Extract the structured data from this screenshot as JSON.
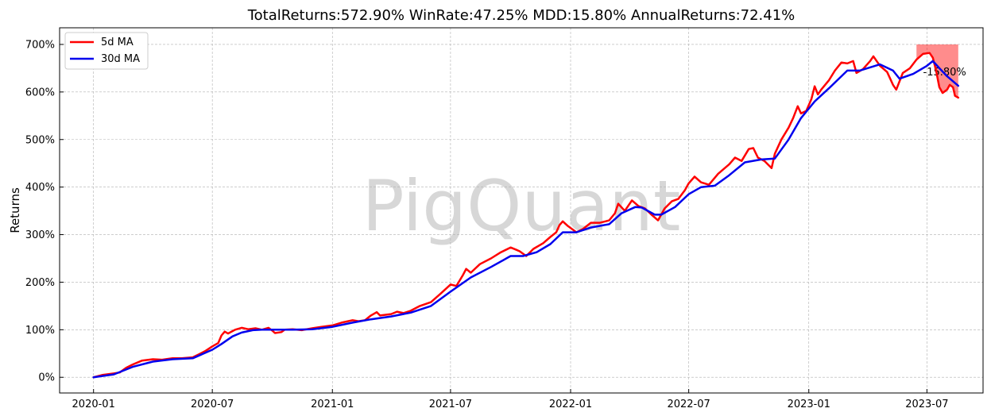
{
  "chart_data": {
    "type": "line",
    "title": "TotalReturns:572.90%  WinRate:47.25%  MDD:15.80%  AnnualReturns:72.41%",
    "xlabel": "",
    "ylabel": "Returns",
    "watermark": "PigQuant",
    "grid": true,
    "legend_position": "top-left",
    "xlim": [
      "2019-11-10",
      "2023-09-25"
    ],
    "ylim": [
      -33,
      735
    ],
    "x_ticks": [
      "2020-01",
      "2020-07",
      "2021-01",
      "2021-07",
      "2022-01",
      "2022-07",
      "2023-01",
      "2023-07"
    ],
    "y_ticks": [
      {
        "value": 0,
        "label": "0%"
      },
      {
        "value": 100,
        "label": "100%"
      },
      {
        "value": 200,
        "label": "200%"
      },
      {
        "value": 300,
        "label": "300%"
      },
      {
        "value": 400,
        "label": "400%"
      },
      {
        "value": 500,
        "label": "500%"
      },
      {
        "value": 600,
        "label": "600%"
      },
      {
        "value": 700,
        "label": "700%"
      }
    ],
    "series": [
      {
        "name": "5d MA",
        "color": "#ff0000",
        "points": [
          [
            "2020-01-01",
            0
          ],
          [
            "2020-01-15",
            5
          ],
          [
            "2020-02-01",
            8
          ],
          [
            "2020-02-10",
            10
          ],
          [
            "2020-02-20",
            20
          ],
          [
            "2020-03-01",
            27
          ],
          [
            "2020-03-15",
            35
          ],
          [
            "2020-04-01",
            38
          ],
          [
            "2020-04-15",
            37
          ],
          [
            "2020-05-01",
            40
          ],
          [
            "2020-05-15",
            40
          ],
          [
            "2020-06-01",
            42
          ],
          [
            "2020-06-10",
            48
          ],
          [
            "2020-06-20",
            55
          ],
          [
            "2020-07-01",
            65
          ],
          [
            "2020-07-10",
            72
          ],
          [
            "2020-07-15",
            88
          ],
          [
            "2020-07-20",
            96
          ],
          [
            "2020-07-25",
            92
          ],
          [
            "2020-08-05",
            100
          ],
          [
            "2020-08-15",
            104
          ],
          [
            "2020-08-25",
            101
          ],
          [
            "2020-09-05",
            103
          ],
          [
            "2020-09-15",
            100
          ],
          [
            "2020-09-25",
            104
          ],
          [
            "2020-10-01",
            98
          ],
          [
            "2020-10-05",
            93
          ],
          [
            "2020-10-15",
            95
          ],
          [
            "2020-10-20",
            100
          ],
          [
            "2020-11-01",
            101
          ],
          [
            "2020-11-15",
            99
          ],
          [
            "2020-12-01",
            103
          ],
          [
            "2020-12-15",
            106
          ],
          [
            "2021-01-01",
            109
          ],
          [
            "2021-01-15",
            115
          ],
          [
            "2021-02-01",
            120
          ],
          [
            "2021-02-10",
            118
          ],
          [
            "2021-02-20",
            120
          ],
          [
            "2021-03-01",
            130
          ],
          [
            "2021-03-10",
            137
          ],
          [
            "2021-03-15",
            130
          ],
          [
            "2021-04-01",
            133
          ],
          [
            "2021-04-10",
            138
          ],
          [
            "2021-04-20",
            135
          ],
          [
            "2021-05-01",
            140
          ],
          [
            "2021-05-15",
            150
          ],
          [
            "2021-06-01",
            158
          ],
          [
            "2021-06-15",
            175
          ],
          [
            "2021-07-01",
            195
          ],
          [
            "2021-07-10",
            192
          ],
          [
            "2021-07-20",
            215
          ],
          [
            "2021-07-25",
            228
          ],
          [
            "2021-08-01",
            220
          ],
          [
            "2021-08-15",
            238
          ],
          [
            "2021-09-01",
            250
          ],
          [
            "2021-09-15",
            262
          ],
          [
            "2021-10-01",
            273
          ],
          [
            "2021-10-10",
            268
          ],
          [
            "2021-10-15",
            265
          ],
          [
            "2021-10-25",
            255
          ],
          [
            "2021-11-05",
            270
          ],
          [
            "2021-11-20",
            282
          ],
          [
            "2021-12-01",
            295
          ],
          [
            "2021-12-10",
            305
          ],
          [
            "2021-12-15",
            320
          ],
          [
            "2021-12-20",
            328
          ],
          [
            "2021-12-28",
            318
          ],
          [
            "2022-01-10",
            305
          ],
          [
            "2022-01-20",
            312
          ],
          [
            "2022-02-01",
            325
          ],
          [
            "2022-02-15",
            325
          ],
          [
            "2022-03-01",
            330
          ],
          [
            "2022-03-10",
            345
          ],
          [
            "2022-03-15",
            365
          ],
          [
            "2022-03-25",
            350
          ],
          [
            "2022-04-05",
            372
          ],
          [
            "2022-04-15",
            360
          ],
          [
            "2022-04-25",
            355
          ],
          [
            "2022-05-05",
            342
          ],
          [
            "2022-05-15",
            330
          ],
          [
            "2022-05-25",
            355
          ],
          [
            "2022-06-05",
            370
          ],
          [
            "2022-06-15",
            375
          ],
          [
            "2022-06-25",
            393
          ],
          [
            "2022-07-01",
            408
          ],
          [
            "2022-07-10",
            422
          ],
          [
            "2022-07-20",
            410
          ],
          [
            "2022-08-01",
            405
          ],
          [
            "2022-08-15",
            428
          ],
          [
            "2022-09-01",
            448
          ],
          [
            "2022-09-10",
            462
          ],
          [
            "2022-09-20",
            455
          ],
          [
            "2022-10-01",
            480
          ],
          [
            "2022-10-08",
            482
          ],
          [
            "2022-10-15",
            462
          ],
          [
            "2022-10-25",
            455
          ],
          [
            "2022-11-05",
            440
          ],
          [
            "2022-11-10",
            470
          ],
          [
            "2022-11-20",
            500
          ],
          [
            "2022-12-01",
            525
          ],
          [
            "2022-12-08",
            545
          ],
          [
            "2022-12-15",
            570
          ],
          [
            "2022-12-20",
            555
          ],
          [
            "2022-12-28",
            560
          ],
          [
            "2023-01-05",
            585
          ],
          [
            "2023-01-10",
            612
          ],
          [
            "2023-01-15",
            595
          ],
          [
            "2023-01-20",
            605
          ],
          [
            "2023-02-01",
            625
          ],
          [
            "2023-02-10",
            645
          ],
          [
            "2023-02-20",
            662
          ],
          [
            "2023-03-01",
            660
          ],
          [
            "2023-03-10",
            665
          ],
          [
            "2023-03-15",
            640
          ],
          [
            "2023-03-25",
            648
          ],
          [
            "2023-04-05",
            665
          ],
          [
            "2023-04-10",
            675
          ],
          [
            "2023-04-20",
            655
          ],
          [
            "2023-05-01",
            642
          ],
          [
            "2023-05-10",
            615
          ],
          [
            "2023-05-15",
            605
          ],
          [
            "2023-05-25",
            640
          ],
          [
            "2023-06-05",
            650
          ],
          [
            "2023-06-15",
            668
          ],
          [
            "2023-06-25",
            680
          ],
          [
            "2023-07-05",
            682
          ],
          [
            "2023-07-10",
            672
          ],
          [
            "2023-07-15",
            645
          ],
          [
            "2023-07-20",
            610
          ],
          [
            "2023-07-25",
            598
          ],
          [
            "2023-08-01",
            605
          ],
          [
            "2023-08-05",
            615
          ],
          [
            "2023-08-10",
            610
          ],
          [
            "2023-08-13",
            592
          ],
          [
            "2023-08-18",
            588
          ]
        ]
      },
      {
        "name": "30d MA",
        "color": "#0000ee",
        "points": [
          [
            "2020-01-01",
            0
          ],
          [
            "2020-02-01",
            6
          ],
          [
            "2020-03-01",
            22
          ],
          [
            "2020-04-01",
            33
          ],
          [
            "2020-05-01",
            38
          ],
          [
            "2020-06-01",
            40
          ],
          [
            "2020-07-01",
            58
          ],
          [
            "2020-07-15",
            70
          ],
          [
            "2020-08-01",
            86
          ],
          [
            "2020-08-15",
            94
          ],
          [
            "2020-09-01",
            99
          ],
          [
            "2020-09-15",
            100
          ],
          [
            "2020-10-01",
            100
          ],
          [
            "2020-11-01",
            100
          ],
          [
            "2020-12-01",
            101
          ],
          [
            "2021-01-01",
            106
          ],
          [
            "2021-02-01",
            115
          ],
          [
            "2021-03-01",
            122
          ],
          [
            "2021-04-01",
            128
          ],
          [
            "2021-05-01",
            136
          ],
          [
            "2021-06-01",
            150
          ],
          [
            "2021-07-01",
            180
          ],
          [
            "2021-08-01",
            210
          ],
          [
            "2021-09-01",
            232
          ],
          [
            "2021-10-01",
            255
          ],
          [
            "2021-10-20",
            255
          ],
          [
            "2021-11-10",
            263
          ],
          [
            "2021-12-01",
            280
          ],
          [
            "2021-12-20",
            305
          ],
          [
            "2022-01-10",
            305
          ],
          [
            "2022-02-01",
            315
          ],
          [
            "2022-03-01",
            322
          ],
          [
            "2022-03-20",
            345
          ],
          [
            "2022-04-10",
            358
          ],
          [
            "2022-04-20",
            357
          ],
          [
            "2022-05-10",
            342
          ],
          [
            "2022-05-20",
            342
          ],
          [
            "2022-06-10",
            358
          ],
          [
            "2022-07-01",
            385
          ],
          [
            "2022-07-20",
            400
          ],
          [
            "2022-08-10",
            403
          ],
          [
            "2022-09-01",
            425
          ],
          [
            "2022-09-25",
            452
          ],
          [
            "2022-10-20",
            458
          ],
          [
            "2022-11-10",
            460
          ],
          [
            "2022-12-01",
            500
          ],
          [
            "2022-12-20",
            545
          ],
          [
            "2023-01-10",
            580
          ],
          [
            "2023-02-01",
            608
          ],
          [
            "2023-03-01",
            645
          ],
          [
            "2023-03-20",
            645
          ],
          [
            "2023-04-20",
            658
          ],
          [
            "2023-05-10",
            645
          ],
          [
            "2023-05-20",
            628
          ],
          [
            "2023-06-10",
            638
          ],
          [
            "2023-07-01",
            655
          ],
          [
            "2023-07-10",
            665
          ],
          [
            "2023-07-20",
            650
          ],
          [
            "2023-08-01",
            633
          ],
          [
            "2023-08-18",
            613
          ]
        ]
      }
    ],
    "max_drawdown": {
      "label": "-15.80%",
      "color": "#ff0000",
      "x_start": "2023-06-15",
      "x_end": "2023-08-18",
      "y_peak": 700,
      "y_trough": 588
    }
  }
}
